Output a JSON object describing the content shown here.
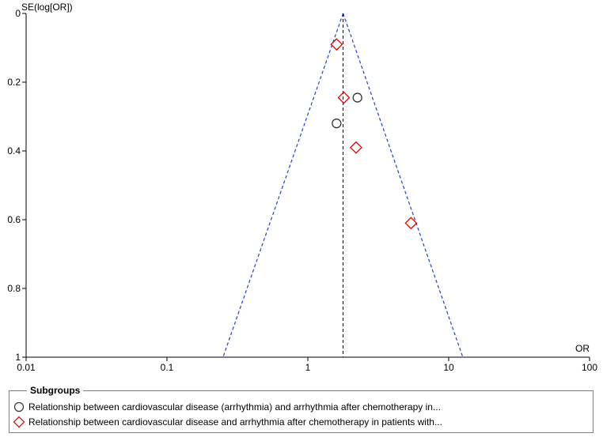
{
  "chart_data": {
    "type": "scatter",
    "subtype": "funnel-plot",
    "xlabel": "OR",
    "ylabel": "SE(log[OR])",
    "x_scale": "log",
    "xlim": [
      0.01,
      100
    ],
    "ylim": [
      0,
      1
    ],
    "y_inverted": true,
    "x_ticks": [
      "0.01",
      "0.1",
      "1",
      "10",
      "100"
    ],
    "y_ticks": [
      "0",
      "0.2",
      "0.4",
      "0.6",
      "0.8",
      "1"
    ],
    "pooled_or": 1.78,
    "funnel_apex": [
      1.78,
      0
    ],
    "funnel_base": [
      0.25,
      12.6
    ],
    "colors": {
      "funnel": "#1f3fd0",
      "pooled_line": "#000000",
      "circle": "#333333",
      "diamond": "#e00000"
    },
    "series": [
      {
        "name": "Relationship between cardiovascular disease (arrhythmia) and arrhythmia after chemotherapy in...",
        "marker": "circle",
        "points": [
          {
            "x": 2.25,
            "y": 0.245
          },
          {
            "x": 1.6,
            "y": 0.32
          }
        ]
      },
      {
        "name": "Relationship between cardiovascular disease and arrhythmia after chemotherapy in patients with...",
        "marker": "diamond",
        "points": [
          {
            "x": 1.6,
            "y": 0.09
          },
          {
            "x": 1.8,
            "y": 0.245
          },
          {
            "x": 2.2,
            "y": 0.39
          },
          {
            "x": 5.4,
            "y": 0.61
          }
        ]
      }
    ],
    "legend": {
      "title": "Subgroups",
      "position": "bottom"
    }
  }
}
